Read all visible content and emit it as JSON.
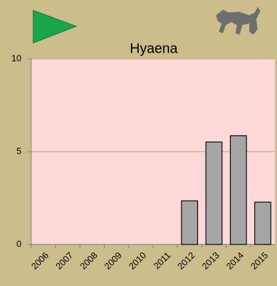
{
  "chart_data": {
    "type": "bar",
    "title": "Hyaena",
    "categories": [
      "2006",
      "2007",
      "2008",
      "2009",
      "2010",
      "2011",
      "2012",
      "2013",
      "2014",
      "2015"
    ],
    "values": [
      null,
      null,
      null,
      null,
      null,
      null,
      2.35,
      5.52,
      5.86,
      2.28
    ],
    "color": "#a6a6a6",
    "ylim": [
      0,
      10
    ],
    "yticks": [
      0,
      5,
      10
    ],
    "grid": true
  }
}
